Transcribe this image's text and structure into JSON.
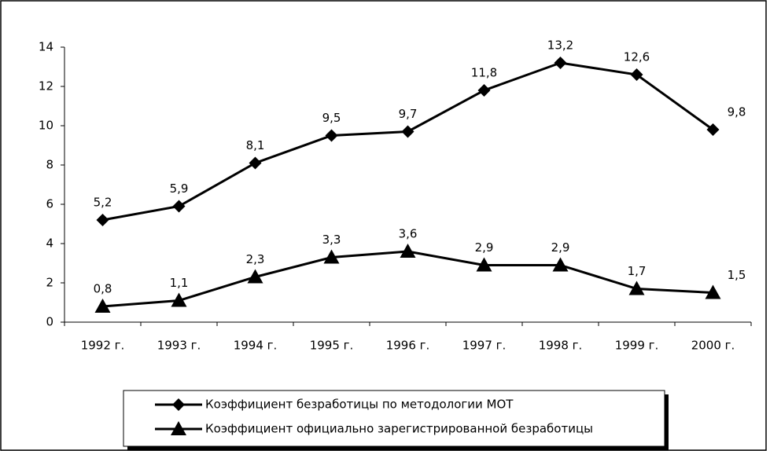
{
  "chart_data": {
    "type": "line",
    "categories": [
      "1992 г.",
      "1993 г.",
      "1994 г.",
      "1995 г.",
      "1996 г.",
      "1997 г.",
      "1998 г.",
      "1999 г.",
      "2000 г."
    ],
    "series": [
      {
        "name": "Коэффициент безработицы по методологии МОТ",
        "color": "#000000",
        "marker": "diamond",
        "values": [
          5.2,
          5.9,
          8.1,
          9.5,
          9.7,
          11.8,
          13.2,
          12.6,
          9.8
        ],
        "value_labels": [
          "5,2",
          "5,9",
          "8,1",
          "9,5",
          "9,7",
          "11,8",
          "13,2",
          "12,6",
          "9,8"
        ]
      },
      {
        "name": "Коэффициент официально зарегистрированной безработицы",
        "color": "#000000",
        "marker": "triangle",
        "values": [
          0.8,
          1.1,
          2.3,
          3.3,
          3.6,
          2.9,
          2.9,
          1.7,
          1.5
        ],
        "value_labels": [
          "0,8",
          "1,1",
          "2,3",
          "3,3",
          "3,6",
          "2,9",
          "2,9",
          "1,7",
          "1,5"
        ]
      }
    ],
    "ylim": [
      0,
      14
    ],
    "yticks": [
      0,
      2,
      4,
      6,
      8,
      10,
      12,
      14
    ],
    "grid": false,
    "legend": "bottom"
  }
}
